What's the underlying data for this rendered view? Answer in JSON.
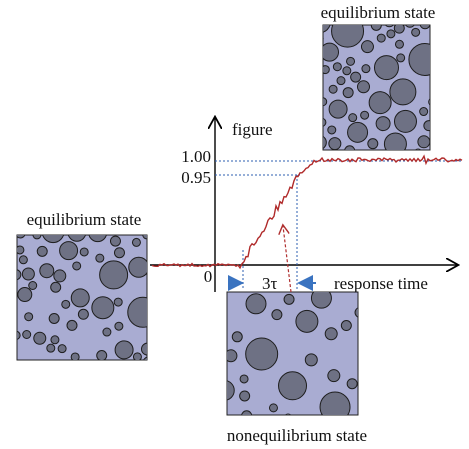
{
  "labels": {
    "top_state": "equilibrium state",
    "left_state": "equilibrium state",
    "bottom_state": "nonequilibrium state",
    "y_axis": "figure",
    "level_high": "1.00",
    "level_low": "0.95",
    "origin": "0",
    "settle_time": "3τ",
    "x_axis": "response time"
  }
}
